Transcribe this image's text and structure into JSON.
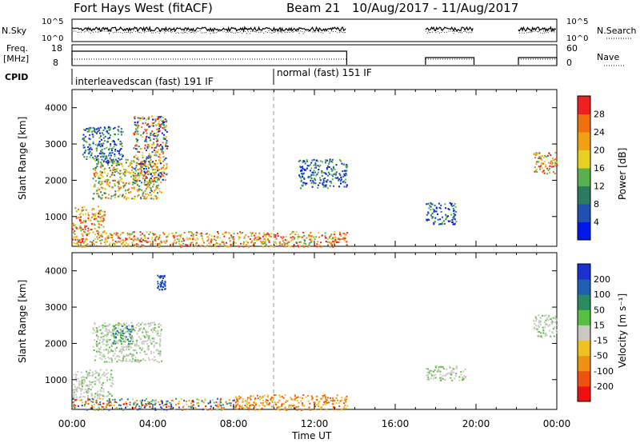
{
  "header": {
    "station": "Fort Hays West (fitACF)",
    "beam": "Beam 21",
    "dates": "10/Aug/2017 - 11/Aug/2017"
  },
  "panels": {
    "nsky_label": "N.Sky",
    "nsearch_label": "N.Search",
    "nsky_ticks": [
      "10^5",
      "10^0"
    ],
    "nsearch_ticks": [
      "10^5",
      "10^0"
    ],
    "freq_label": "Freq.",
    "freq_unit": "[MHz]",
    "freq_ticks": [
      "18",
      "8"
    ],
    "nave_label": "Nave",
    "nave_ticks": [
      "60",
      "0"
    ],
    "cpid_label": "CPID",
    "cpid_first": "interleavedscan (fast) 191 IF",
    "cpid_second": "normal (fast) 151 IF"
  },
  "colorbars": {
    "power": {
      "label": "Power [dB]",
      "ticks": [
        "28",
        "24",
        "20",
        "16",
        "12",
        "8",
        "4"
      ],
      "colors": [
        "#0018e8",
        "#2050b0",
        "#2c7a60",
        "#58b050",
        "#e8d020",
        "#f0a010",
        "#f07010",
        "#ee2020"
      ]
    },
    "velocity": {
      "label": "Velocity [m s⁻¹]",
      "ticks": [
        "200",
        "100",
        "50",
        "15",
        "-15",
        "-50",
        "-100",
        "-200"
      ],
      "colors": [
        "#ee1010",
        "#f05010",
        "#f09010",
        "#f0c020",
        "#c8c8c0",
        "#58c040",
        "#2a8a60",
        "#2060b0",
        "#1a30d0"
      ]
    }
  },
  "chart_data": [
    {
      "type": "heatmap",
      "title": "Power",
      "ylabel": "Slant Range [km]",
      "xlabel": "Time UT",
      "xlim": [
        "00:00",
        "24:00"
      ],
      "ylim": [
        180,
        4500
      ],
      "x_ticks": [
        "00:00",
        "04:00",
        "08:00",
        "12:00",
        "16:00",
        "20:00",
        "00:00"
      ],
      "y_ticks": [
        1000,
        2000,
        3000,
        4000
      ],
      "cpid_change_hour": 10,
      "data_coverage_hours": [
        [
          0,
          13.6
        ],
        [
          17.5,
          19.9
        ],
        [
          22.1,
          24
        ]
      ],
      "regions": [
        {
          "t": [
            0,
            1.6
          ],
          "r": [
            600,
            1300
          ],
          "level": "high"
        },
        {
          "t": [
            1.0,
            4.4
          ],
          "r": [
            1500,
            2600
          ],
          "level": "medium"
        },
        {
          "t": [
            3.0,
            4.7
          ],
          "r": [
            2000,
            3800
          ],
          "level": "mixed"
        },
        {
          "t": [
            0.5,
            2.5
          ],
          "r": [
            2500,
            3500
          ],
          "level": "low"
        },
        {
          "t": [
            0,
            13.6
          ],
          "r": [
            180,
            600
          ],
          "level": "high"
        },
        {
          "t": [
            11.2,
            13.6
          ],
          "r": [
            1800,
            2600
          ],
          "level": "low"
        },
        {
          "t": [
            17.5,
            19.0
          ],
          "r": [
            800,
            1400
          ],
          "level": "low"
        },
        {
          "t": [
            22.8,
            24
          ],
          "r": [
            2200,
            2800
          ],
          "level": "high"
        }
      ]
    },
    {
      "type": "heatmap",
      "title": "Velocity",
      "ylabel": "Slant Range [km]",
      "xlabel": "Time UT",
      "xlim": [
        "00:00",
        "24:00"
      ],
      "ylim": [
        180,
        4500
      ],
      "x_ticks": [
        "00:00",
        "04:00",
        "08:00",
        "12:00",
        "16:00",
        "20:00",
        "00:00"
      ],
      "y_ticks": [
        1000,
        2000,
        3000,
        4000
      ],
      "regions": [
        {
          "t": [
            0,
            2.0
          ],
          "r": [
            500,
            1300
          ],
          "level": "near-zero"
        },
        {
          "t": [
            1.0,
            4.4
          ],
          "r": [
            1500,
            2600
          ],
          "level": "near-zero"
        },
        {
          "t": [
            2.0,
            3.0
          ],
          "r": [
            2000,
            2500
          ],
          "level": "positive"
        },
        {
          "t": [
            4.2,
            4.6
          ],
          "r": [
            3500,
            3900
          ],
          "level": "strongly-positive"
        },
        {
          "t": [
            8.0,
            13.6
          ],
          "r": [
            180,
            600
          ],
          "level": "negative"
        },
        {
          "t": [
            0,
            8.0
          ],
          "r": [
            180,
            500
          ],
          "level": "mixed"
        },
        {
          "t": [
            17.5,
            19.5
          ],
          "r": [
            1000,
            1400
          ],
          "level": "near-zero"
        },
        {
          "t": [
            22.8,
            24
          ],
          "r": [
            2200,
            2800
          ],
          "level": "near-zero"
        }
      ]
    }
  ],
  "axes": {
    "ylabel": "Slant Range [km]",
    "xlabel": "Time UT",
    "x_ticks": [
      "00:00",
      "04:00",
      "08:00",
      "12:00",
      "16:00",
      "20:00",
      "00:00"
    ],
    "y_ticks": [
      "1000",
      "2000",
      "3000",
      "4000"
    ]
  }
}
